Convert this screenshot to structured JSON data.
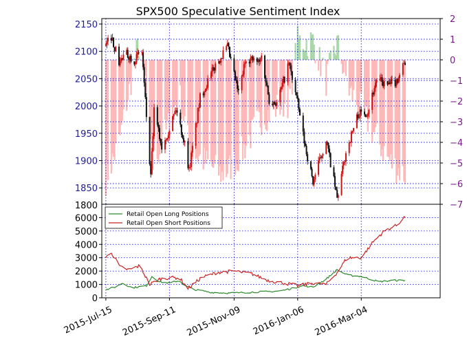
{
  "chart_data": [
    {
      "type": "candlestick+bar",
      "title": "SPX500 Speculative Sentiment Index",
      "y_left": {
        "ticks": [
          1850,
          1900,
          1950,
          2000,
          2050,
          2100,
          2150
        ],
        "range": [
          1820,
          2160
        ]
      },
      "y_right": {
        "ticks": [
          2,
          1,
          0,
          -1,
          -2,
          -3,
          -4,
          -5,
          -6,
          -7
        ],
        "range": [
          -7,
          2
        ]
      },
      "grid": true,
      "colors": {
        "up": "#cc1111",
        "down": "#111111",
        "ssi_pos": "#a8d8a8",
        "ssi_neg": "#ffb8b8",
        "grid": "#2020c0"
      },
      "price_keyframes": [
        [
          "2015-07-15",
          2110
        ],
        [
          "2015-07-20",
          2128
        ],
        [
          "2015-07-27",
          2080
        ],
        [
          "2015-08-03",
          2095
        ],
        [
          "2015-08-10",
          2085
        ],
        [
          "2015-08-17",
          2100
        ],
        [
          "2015-08-21",
          1980
        ],
        [
          "2015-08-25",
          1868
        ],
        [
          "2015-08-28",
          1990
        ],
        [
          "2015-09-04",
          1925
        ],
        [
          "2015-09-11",
          1960
        ],
        [
          "2015-09-17",
          1995
        ],
        [
          "2015-09-25",
          1930
        ],
        [
          "2015-09-29",
          1882
        ],
        [
          "2015-10-09",
          2015
        ],
        [
          "2015-10-23",
          2075
        ],
        [
          "2015-11-03",
          2108
        ],
        [
          "2015-11-13",
          2023
        ],
        [
          "2015-11-20",
          2089
        ],
        [
          "2015-12-02",
          2079
        ],
        [
          "2015-12-04",
          2091
        ],
        [
          "2015-12-11",
          2012
        ],
        [
          "2015-12-18",
          2005
        ],
        [
          "2015-12-29",
          2078
        ],
        [
          "2016-01-05",
          2016
        ],
        [
          "2016-01-12",
          1935
        ],
        [
          "2016-01-20",
          1860
        ],
        [
          "2016-02-01",
          1939
        ],
        [
          "2016-02-11",
          1830
        ],
        [
          "2016-02-19",
          1915
        ],
        [
          "2016-03-01",
          1985
        ],
        [
          "2016-03-10",
          1990
        ],
        [
          "2016-03-18",
          2049
        ],
        [
          "2016-03-28",
          2037
        ],
        [
          "2016-04-05",
          2045
        ],
        [
          "2016-04-13",
          2082
        ]
      ],
      "ssi_keyframes": [
        [
          "2015-07-15",
          -5.8
        ],
        [
          "2015-07-27",
          -4.0
        ],
        [
          "2015-08-05",
          -1.5
        ],
        [
          "2015-08-14",
          0.8
        ],
        [
          "2015-08-20",
          -1.0
        ],
        [
          "2015-08-26",
          -5.2
        ],
        [
          "2015-09-10",
          -3.2
        ],
        [
          "2015-09-20",
          -1.6
        ],
        [
          "2015-09-30",
          -4.4
        ],
        [
          "2015-10-15",
          -5.0
        ],
        [
          "2015-10-30",
          -5.6
        ],
        [
          "2015-11-15",
          -4.6
        ],
        [
          "2015-12-01",
          -3.0
        ],
        [
          "2015-12-15",
          -2.4
        ],
        [
          "2015-12-29",
          -2.0
        ],
        [
          "2016-01-06",
          0.9
        ],
        [
          "2016-01-20",
          0.9
        ],
        [
          "2016-02-01",
          -1.0
        ],
        [
          "2016-02-11",
          0.8
        ],
        [
          "2016-02-22",
          -1.5
        ],
        [
          "2016-03-04",
          -2.4
        ],
        [
          "2016-03-18",
          -3.8
        ],
        [
          "2016-03-31",
          -5.0
        ],
        [
          "2016-04-13",
          -5.6
        ]
      ]
    },
    {
      "type": "line",
      "y": {
        "ticks": [
          0,
          1000,
          2000,
          3000,
          4000,
          5000,
          6000
        ],
        "range": [
          0,
          7000
        ]
      },
      "x": {
        "ticks": [
          "2015-Jul-15",
          "2015-Sep-11",
          "2015-Nov-09",
          "2016-Jan-06",
          "2016-Mar-04"
        ],
        "range": [
          "2015-06-30",
          "2016-05-15"
        ]
      },
      "legend_position": "top-left",
      "series": [
        {
          "name": "Retail Open Long Positions",
          "color": "#2a8a2a",
          "points": [
            [
              "2015-07-15",
              600
            ],
            [
              "2015-07-25",
              850
            ],
            [
              "2015-07-30",
              1100
            ],
            [
              "2015-08-08",
              750
            ],
            [
              "2015-08-21",
              900
            ],
            [
              "2015-08-26",
              1600
            ],
            [
              "2015-09-02",
              1200
            ],
            [
              "2015-09-11",
              1100
            ],
            [
              "2015-09-20",
              1300
            ],
            [
              "2015-09-25",
              900
            ],
            [
              "2015-10-05",
              600
            ],
            [
              "2015-10-20",
              400
            ],
            [
              "2015-11-05",
              350
            ],
            [
              "2015-11-20",
              400
            ],
            [
              "2015-12-05",
              450
            ],
            [
              "2015-12-20",
              500
            ],
            [
              "2016-01-01",
              700
            ],
            [
              "2016-01-10",
              900
            ],
            [
              "2016-01-20",
              800
            ],
            [
              "2016-02-01",
              1400
            ],
            [
              "2016-02-11",
              2100
            ],
            [
              "2016-02-20",
              1700
            ],
            [
              "2016-03-04",
              1600
            ],
            [
              "2016-03-20",
              1200
            ],
            [
              "2016-04-01",
              1300
            ],
            [
              "2016-04-13",
              1300
            ]
          ]
        },
        {
          "name": "Retail Open Short Positions",
          "color": "#cc2222",
          "points": [
            [
              "2015-07-15",
              3000
            ],
            [
              "2015-07-20",
              3400
            ],
            [
              "2015-07-28",
              2300
            ],
            [
              "2015-08-05",
              2100
            ],
            [
              "2015-08-15",
              2400
            ],
            [
              "2015-08-24",
              1000
            ],
            [
              "2015-09-02",
              1400
            ],
            [
              "2015-09-11",
              1500
            ],
            [
              "2015-09-20",
              1500
            ],
            [
              "2015-09-28",
              700
            ],
            [
              "2015-10-10",
              1500
            ],
            [
              "2015-10-25",
              1900
            ],
            [
              "2015-11-09",
              2000
            ],
            [
              "2015-11-25",
              1800
            ],
            [
              "2015-12-10",
              1300
            ],
            [
              "2015-12-25",
              1100
            ],
            [
              "2016-01-06",
              900
            ],
            [
              "2016-01-20",
              1100
            ],
            [
              "2016-02-01",
              1000
            ],
            [
              "2016-02-11",
              1900
            ],
            [
              "2016-02-20",
              3000
            ],
            [
              "2016-03-04",
              3000
            ],
            [
              "2016-03-15",
              4200
            ],
            [
              "2016-03-25",
              5000
            ],
            [
              "2016-04-05",
              5400
            ],
            [
              "2016-04-13",
              6100
            ]
          ]
        }
      ]
    }
  ]
}
